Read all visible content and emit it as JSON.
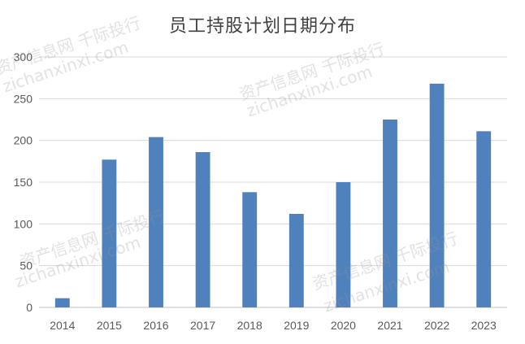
{
  "watermark": {
    "cn": "资产信息网 千际投行",
    "site": "zichanxinxi.com"
  },
  "chart_data": {
    "type": "bar",
    "title": "员工持股计划日期分布",
    "categories": [
      "2014",
      "2015",
      "2016",
      "2017",
      "2018",
      "2019",
      "2020",
      "2021",
      "2022",
      "2023"
    ],
    "values": [
      11,
      177,
      204,
      186,
      138,
      112,
      150,
      225,
      268,
      211
    ],
    "ylim": [
      0,
      300
    ],
    "yticks": [
      0,
      50,
      100,
      150,
      200,
      250,
      300
    ],
    "grid": true,
    "bar_color": "#4F81BD",
    "legend": "none"
  }
}
